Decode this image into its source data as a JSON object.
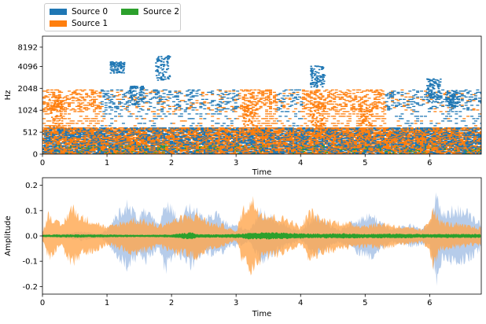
{
  "legend": {
    "items": [
      {
        "label": "Source 0",
        "color": "#1f77b4"
      },
      {
        "label": "Source 1",
        "color": "#ff7f0e"
      },
      {
        "label": "Source 2",
        "color": "#2ca02c"
      }
    ]
  },
  "chart_data": [
    {
      "type": "heatmap",
      "xlabel": "Time",
      "ylabel": "Hz",
      "xlim": [
        0,
        6.8
      ],
      "x_ticks": [
        "0",
        "1",
        "2",
        "3",
        "4",
        "5",
        "6"
      ],
      "y_ticks": [
        "0",
        "512",
        "1024",
        "2048",
        "4096",
        "8192"
      ],
      "y_scale": "symlog (mel-like)",
      "series": [
        {
          "name": "Source 0",
          "color": "#1f77b4",
          "bursts": [
            [
              1.15,
              3400,
              5200
            ],
            [
              1.85,
              2800,
              6500
            ],
            [
              1.45,
              1300,
              2300
            ],
            [
              4.25,
              2200,
              4300
            ],
            [
              6.05,
              1400,
              3000
            ],
            [
              6.35,
              1200,
              2000
            ]
          ]
        },
        {
          "name": "Source 1",
          "color": "#ff7f0e",
          "bursts": [
            [
              0.2,
              600,
              1700
            ],
            [
              3.2,
              400,
              1300
            ],
            [
              4.25,
              400,
              1300
            ],
            [
              5.0,
              400,
              1200
            ]
          ]
        },
        {
          "name": "Source 2",
          "color": "#2ca02c",
          "bursts": [
            [
              0.0,
              0,
              150
            ]
          ]
        }
      ]
    },
    {
      "type": "area",
      "xlabel": "Time",
      "ylabel": "Amplitude",
      "xlim": [
        0,
        6.8
      ],
      "ylim": [
        -0.23,
        0.23
      ],
      "x_ticks": [
        "0",
        "1",
        "2",
        "3",
        "4",
        "5",
        "6"
      ],
      "y_ticks": [
        "-0.2",
        "-0.1",
        "0.0",
        "0.1",
        "0.2"
      ],
      "grid": false,
      "series": [
        {
          "name": "Source 0",
          "color": "#aec7e8",
          "t": [
            0.0,
            0.3,
            0.6,
            0.9,
            1.0,
            1.2,
            1.3,
            1.5,
            1.6,
            1.8,
            1.9,
            2.1,
            2.3,
            2.5,
            2.7,
            2.9,
            3.0,
            3.2,
            3.4,
            3.7,
            4.0,
            4.2,
            4.3,
            4.6,
            4.9,
            5.1,
            5.4,
            5.7,
            5.9,
            6.0,
            6.1,
            6.2,
            6.4,
            6.6,
            6.8
          ],
          "amp": [
            0.0,
            0.01,
            0.02,
            0.01,
            0.03,
            0.12,
            0.15,
            0.09,
            0.12,
            0.05,
            0.16,
            0.09,
            0.14,
            0.08,
            0.1,
            0.05,
            0.05,
            0.03,
            0.12,
            0.06,
            0.02,
            0.09,
            0.08,
            0.03,
            0.08,
            0.1,
            0.03,
            0.05,
            0.04,
            0.05,
            0.21,
            0.1,
            0.13,
            0.11,
            0.06
          ]
        },
        {
          "name": "Source 1",
          "color": "#ffa64d",
          "t": [
            0.0,
            0.1,
            0.2,
            0.3,
            0.45,
            0.6,
            0.8,
            1.0,
            1.2,
            1.4,
            1.6,
            1.8,
            2.0,
            2.2,
            2.4,
            2.6,
            2.8,
            3.0,
            3.1,
            3.25,
            3.4,
            3.6,
            3.8,
            4.0,
            4.15,
            4.3,
            4.5,
            4.7,
            5.0,
            5.3,
            5.6,
            5.9,
            6.0,
            6.05,
            6.15,
            6.3,
            6.5,
            6.8
          ],
          "amp": [
            0.02,
            0.11,
            0.07,
            0.05,
            0.14,
            0.09,
            0.07,
            0.04,
            0.06,
            0.08,
            0.07,
            0.05,
            0.07,
            0.09,
            0.1,
            0.06,
            0.05,
            0.02,
            0.12,
            0.17,
            0.11,
            0.09,
            0.08,
            0.04,
            0.12,
            0.08,
            0.07,
            0.06,
            0.05,
            0.06,
            0.04,
            0.03,
            0.08,
            0.15,
            0.07,
            0.06,
            0.05,
            0.04
          ]
        },
        {
          "name": "Source 2",
          "color": "#2ca02c",
          "t": [
            0.0,
            0.5,
            1.0,
            1.5,
            2.0,
            2.3,
            2.4,
            2.8,
            3.1,
            3.2,
            3.5,
            3.8,
            4.0,
            4.3,
            4.7,
            5.0,
            5.5,
            6.0,
            6.4,
            6.8
          ],
          "amp": [
            0.006,
            0.007,
            0.006,
            0.005,
            0.006,
            0.016,
            0.008,
            0.007,
            0.01,
            0.014,
            0.015,
            0.013,
            0.011,
            0.01,
            0.011,
            0.009,
            0.01,
            0.008,
            0.009,
            0.008
          ]
        }
      ]
    }
  ]
}
